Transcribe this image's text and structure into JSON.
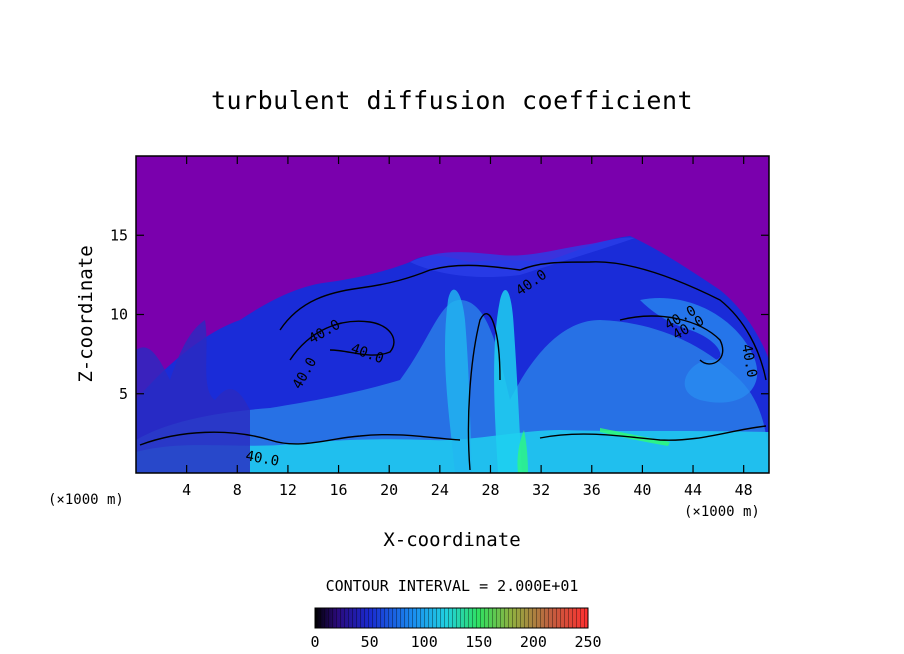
{
  "chart_data": {
    "type": "heatmap",
    "title": "turbulent diffusion coefficient",
    "xlabel": "X-coordinate",
    "ylabel": "Z-coordinate",
    "x_unit": "(×1000 m)",
    "x_unit_right": "(×1000 m)",
    "xlim": [
      0,
      50
    ],
    "ylim": [
      0,
      20
    ],
    "x_ticks": [
      4,
      8,
      12,
      16,
      20,
      24,
      28,
      32,
      36,
      40,
      44,
      48
    ],
    "y_ticks": [
      5,
      10,
      15
    ],
    "contour_interval_text": "CONTOUR INTERVAL = 2.000E+01",
    "contour_labels": [
      "40.0",
      "40.0",
      "40.0",
      "40.0",
      "40.0",
      "40.0",
      "40.0",
      "40.0"
    ],
    "colorbar": {
      "range": [
        0,
        250
      ],
      "tick_values": [
        0,
        50,
        100,
        150,
        200,
        250
      ],
      "tick_labels": [
        "0",
        "50",
        "100",
        "150",
        "200",
        "250"
      ]
    },
    "colors": {
      "background_field": "#7a00ad",
      "low": "#1020c0",
      "mid": "#2a8ef0",
      "high": "#22d8f0",
      "peak": "#30ff70"
    }
  }
}
